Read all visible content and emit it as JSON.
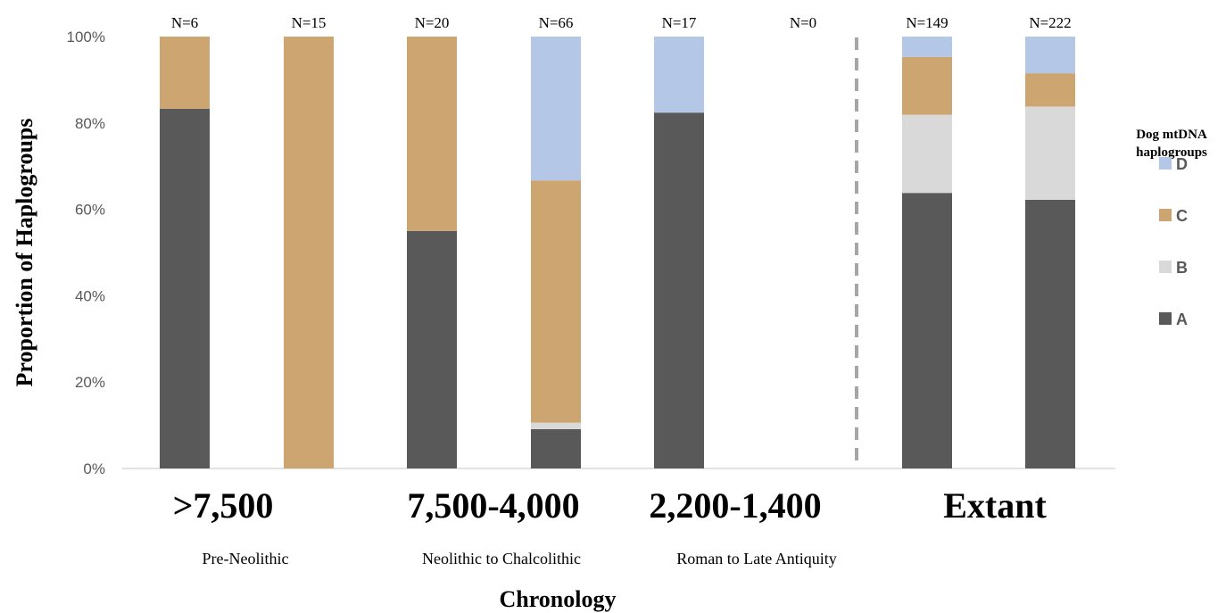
{
  "chart_data": {
    "type": "bar",
    "stacked": true,
    "ylabel": "Proportion of Haplogroups",
    "xlabel": "Chronology",
    "ylim": [
      0,
      100
    ],
    "yticks": [
      "0%",
      "20%",
      "40%",
      "60%",
      "80%",
      "100%"
    ],
    "groups": [
      {
        "label": ">7,500",
        "period": "Pre-Neolithic"
      },
      {
        "label": "7,500-4,000",
        "period": "Neolithic to Chalcolithic"
      },
      {
        "label": "2,200-1,400",
        "period": "Roman to Late Antiquity"
      },
      {
        "label": "Extant",
        "period": ""
      }
    ],
    "bars": [
      {
        "n_label": "N=6",
        "group": 0,
        "values": {
          "A": 83.3,
          "B": 0,
          "C": 16.7,
          "D": 0
        }
      },
      {
        "n_label": "N=15",
        "group": 0,
        "values": {
          "A": 0,
          "B": 0,
          "C": 100,
          "D": 0
        }
      },
      {
        "n_label": "N=20",
        "group": 1,
        "values": {
          "A": 55,
          "B": 0,
          "C": 45,
          "D": 0
        }
      },
      {
        "n_label": "N=66",
        "group": 1,
        "values": {
          "A": 9.1,
          "B": 1.5,
          "C": 56.1,
          "D": 33.3
        }
      },
      {
        "n_label": "N=17",
        "group": 2,
        "values": {
          "A": 82.4,
          "B": 0,
          "C": 0,
          "D": 17.6
        }
      },
      {
        "n_label": "N=0",
        "group": 2,
        "values": {
          "A": 0,
          "B": 0,
          "C": 0,
          "D": 0
        }
      },
      {
        "n_label": "N=149",
        "group": 3,
        "values": {
          "A": 63.8,
          "B": 18.1,
          "C": 13.4,
          "D": 4.7
        }
      },
      {
        "n_label": "N=222",
        "group": 3,
        "values": {
          "A": 62.2,
          "B": 21.6,
          "C": 7.7,
          "D": 8.5
        }
      }
    ],
    "series": [
      {
        "name": "A",
        "color": "#595959"
      },
      {
        "name": "B",
        "color": "#d9d9d9"
      },
      {
        "name": "C",
        "color": "#cca570"
      },
      {
        "name": "D",
        "color": "#b4c7e7"
      }
    ],
    "legend": {
      "title_line1": "Dog mtDNA",
      "title_line2": "haplogroups",
      "order": [
        "D",
        "C",
        "B",
        "A"
      ],
      "placement": "right"
    },
    "separator": {
      "after_group": 2,
      "style": "dashed",
      "color": "#a6a6a6"
    }
  }
}
